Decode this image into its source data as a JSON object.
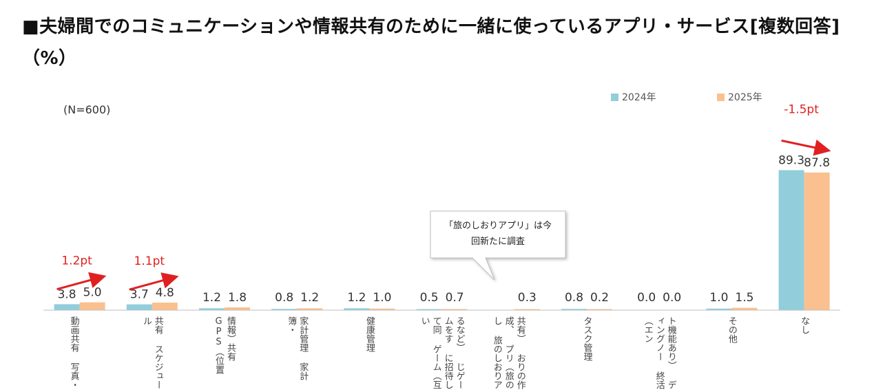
{
  "title": "■夫婦間でのコミュニケーションや情報共有のために一緒に使っているアプリ・サービス[複数回答]（%）",
  "sample_note": "(N=600)",
  "callout_text": "「旅のしおりアプリ」は今回新たに調査",
  "colors": {
    "series_2024": "#92CDDC",
    "series_2025": "#FAC090",
    "annotation": "#E02020",
    "axis": "#BFBFBF"
  },
  "chart_data": {
    "type": "bar",
    "categories": [
      "動画共有 写真・",
      "共有 スケジュール",
      "情報）共有 GPS（位置",
      "家計管理 家計簿・",
      "健康管理",
      "るなど） じゲームをす に招待して同 ゲーム（互い",
      "共有） おりの作成、 プリ（旅のし 旅のしおりア",
      "タスク管理",
      "ト機能あり） ディングノー 終活（エン",
      "その他",
      "なし"
    ],
    "series": [
      {
        "name": "2024年",
        "values": [
          3.8,
          3.7,
          1.2,
          0.8,
          1.2,
          0.5,
          null,
          0.8,
          0.0,
          1.0,
          89.3
        ],
        "labels": [
          "3.8",
          "3.7",
          "1.2",
          "0.8",
          "1.2",
          "0.5",
          "",
          "0.8",
          "0.0",
          "1.0",
          "89.3"
        ]
      },
      {
        "name": "2025年",
        "values": [
          5.0,
          4.8,
          1.8,
          1.2,
          1.0,
          0.7,
          0.3,
          0.2,
          0.0,
          1.5,
          87.8
        ],
        "labels": [
          "5.0",
          "4.8",
          "1.8",
          "1.2",
          "1.0",
          "0.7",
          "0.3",
          "0.2",
          "0.0",
          "1.5",
          "87.8"
        ]
      }
    ],
    "ylim": [
      0,
      100
    ],
    "grid": false,
    "legend": "top-right",
    "annotations": [
      {
        "category_index": 0,
        "text": "1.2pt",
        "direction": "up"
      },
      {
        "category_index": 1,
        "text": "1.1pt",
        "direction": "up"
      },
      {
        "category_index": 10,
        "text": "-1.5pt",
        "direction": "down"
      }
    ]
  }
}
